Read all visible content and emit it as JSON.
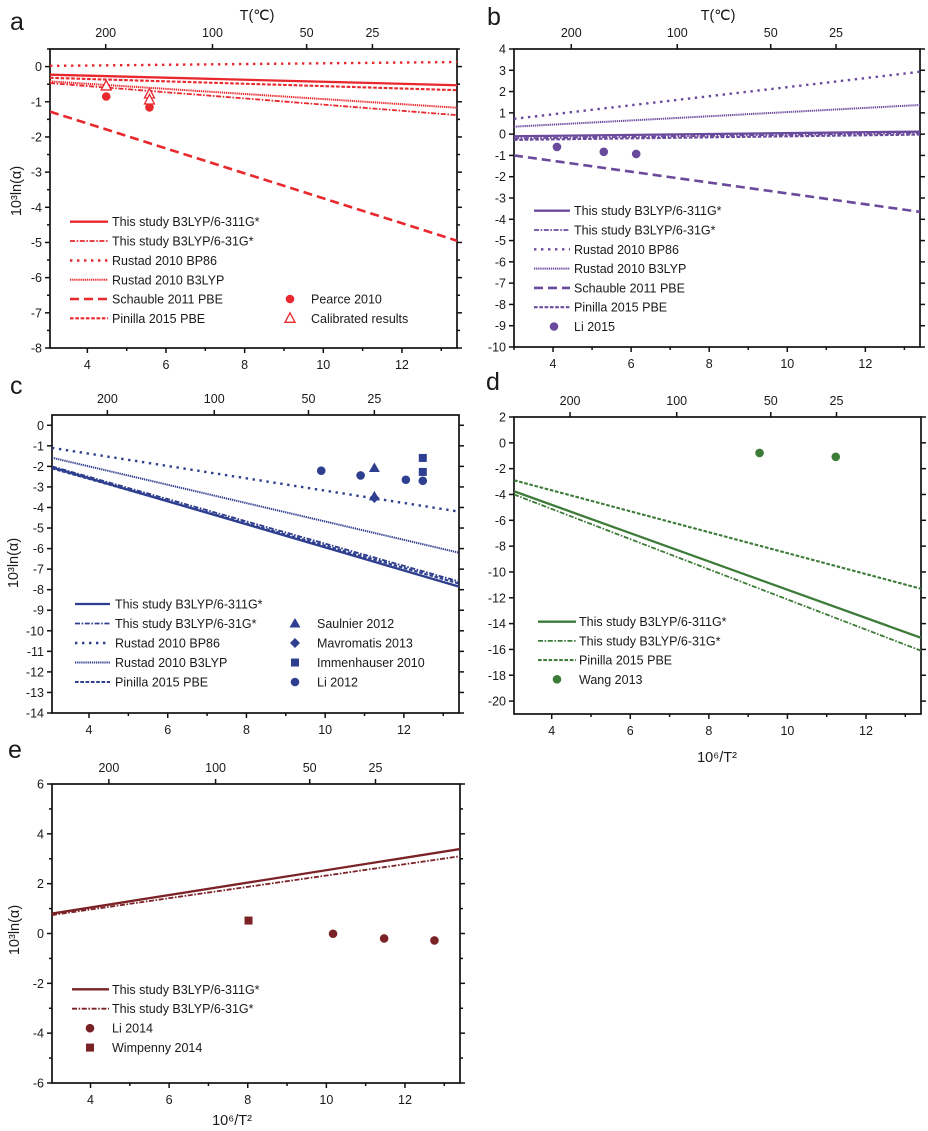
{
  "chart_data": [
    {
      "panel": "a",
      "type": "line",
      "title": "",
      "xlabel": "",
      "ylabel": "10³ln(α)",
      "top_axis_label": "T(℃)",
      "xlim": [
        3.05,
        13.4
      ],
      "ylim": [
        -8,
        0.5
      ],
      "xticks": [
        4,
        6,
        8,
        10,
        12
      ],
      "yticks": [
        0,
        -1,
        -2,
        -3,
        -4,
        -5,
        -6,
        -7,
        -8
      ],
      "top_ticks_celsius": [
        200,
        100,
        50,
        25
      ],
      "grid": false,
      "legend_placement": "bottom-left",
      "color": "#e8282d",
      "series": [
        {
          "name": "This study B3LYP/6-311G*",
          "style": "solid",
          "x": [
            3.05,
            13.4
          ],
          "y": [
            -0.23,
            -0.53
          ]
        },
        {
          "name": "This study B3LYP/6-31G*",
          "style": "dash-dot",
          "x": [
            3.05,
            13.4
          ],
          "y": [
            -0.47,
            -1.38
          ]
        },
        {
          "name": "Rustad 2010 BP86",
          "style": "dotted",
          "x": [
            3.05,
            13.4
          ],
          "y": [
            0.02,
            0.13
          ]
        },
        {
          "name": "Rustad 2010 B3LYP",
          "style": "fine-dotted",
          "x": [
            3.05,
            13.4
          ],
          "y": [
            -0.42,
            -1.17
          ]
        },
        {
          "name": "Schauble 2011 PBE",
          "style": "dashed",
          "x": [
            3.05,
            13.4
          ],
          "y": [
            -1.28,
            -4.95
          ]
        },
        {
          "name": "Pinilla 2015 PBE",
          "style": "short-dashed",
          "x": [
            3.05,
            13.4
          ],
          "y": [
            -0.32,
            -0.67
          ]
        }
      ],
      "points": [
        {
          "name": "Pearce 2010",
          "marker": "circle",
          "x": [
            4.48,
            5.58
          ],
          "y": [
            -0.85,
            -1.16
          ]
        },
        {
          "name": "Calibrated results",
          "marker": "triangle-open",
          "x": [
            4.48,
            5.58,
            5.58
          ],
          "y": [
            -0.55,
            -0.78,
            -0.95
          ]
        }
      ]
    },
    {
      "panel": "b",
      "type": "line",
      "title": "",
      "xlabel": "",
      "ylabel": "",
      "top_axis_label": "T(℃)",
      "xlim": [
        3.0,
        13.4
      ],
      "ylim": [
        -10,
        4
      ],
      "xticks": [
        4,
        6,
        8,
        10,
        12
      ],
      "yticks": [
        4,
        3,
        2,
        1,
        0,
        -1,
        -2,
        -3,
        -4,
        -5,
        -6,
        -7,
        -8,
        -9,
        -10
      ],
      "top_ticks_celsius": [
        200,
        100,
        50,
        25
      ],
      "grid": false,
      "legend_placement": "bottom-left",
      "color": "#6a4a9c",
      "series": [
        {
          "name": "This study B3LYP/6-311G*",
          "style": "solid",
          "x": [
            3.0,
            13.4
          ],
          "y": [
            -0.1,
            0.12
          ]
        },
        {
          "name": "This study B3LYP/6-31G*",
          "style": "dash-dot",
          "x": [
            3.0,
            13.4
          ],
          "y": [
            -0.2,
            0.05
          ]
        },
        {
          "name": "Rustad 2010 BP86",
          "style": "dotted",
          "x": [
            3.0,
            13.4
          ],
          "y": [
            0.72,
            2.93
          ]
        },
        {
          "name": "Rustad 2010 B3LYP",
          "style": "fine-dotted",
          "x": [
            3.0,
            13.4
          ],
          "y": [
            0.35,
            1.37
          ]
        },
        {
          "name": "Schauble 2011 PBE",
          "style": "dashed",
          "x": [
            3.0,
            13.4
          ],
          "y": [
            -1.0,
            -3.65
          ]
        },
        {
          "name": "Pinilla 2015 PBE",
          "style": "short-dashed",
          "x": [
            3.0,
            13.4
          ],
          "y": [
            -0.27,
            -0.02
          ]
        }
      ],
      "points": [
        {
          "name": "Li 2015",
          "marker": "circle",
          "x": [
            4.1,
            5.3,
            6.13
          ],
          "y": [
            -0.6,
            -0.83,
            -0.93
          ]
        }
      ]
    },
    {
      "panel": "c",
      "type": "line",
      "title": "",
      "xlabel": "",
      "ylabel": "10³ln(α)",
      "top_axis_label": "",
      "xlim": [
        3.06,
        13.4
      ],
      "ylim": [
        -14,
        0.5
      ],
      "xticks": [
        4,
        6,
        8,
        10,
        12
      ],
      "yticks": [
        0,
        -1,
        -2,
        -3,
        -4,
        -5,
        -6,
        -7,
        -8,
        -9,
        -10,
        -11,
        -12,
        -13,
        -14
      ],
      "top_ticks_celsius": [
        200,
        100,
        50,
        25
      ],
      "grid": false,
      "legend_placement": "bottom-left",
      "color": "#2f3f8f",
      "series": [
        {
          "name": "This study B3LYP/6-311G*",
          "style": "solid",
          "x": [
            3.06,
            13.4
          ],
          "y": [
            -2.05,
            -7.85
          ]
        },
        {
          "name": "This study B3LYP/6-31G*",
          "style": "dash-dot",
          "x": [
            3.06,
            13.4
          ],
          "y": [
            -2.0,
            -7.6
          ]
        },
        {
          "name": "Rustad 2010 BP86",
          "style": "dotted",
          "x": [
            3.06,
            13.4
          ],
          "y": [
            -1.1,
            -4.2
          ]
        },
        {
          "name": "Rustad 2010 B3LYP",
          "style": "fine-dotted",
          "x": [
            3.06,
            13.4
          ],
          "y": [
            -1.58,
            -6.2
          ]
        },
        {
          "name": "Pinilla 2015 PBE",
          "style": "short-dashed",
          "x": [
            3.06,
            13.4
          ],
          "y": [
            -2.1,
            -7.7
          ]
        }
      ],
      "points": [
        {
          "name": "Saulnier 2012",
          "marker": "triangle",
          "x": [
            11.25,
            11.25
          ],
          "y": [
            -2.08,
            -3.46
          ]
        },
        {
          "name": "Mavromatis 2013",
          "marker": "diamond",
          "x": [
            11.25
          ],
          "y": [
            -3.54
          ]
        },
        {
          "name": "Immenhauser 2010",
          "marker": "square",
          "x": [
            12.48,
            12.48
          ],
          "y": [
            -1.59,
            -2.27
          ]
        },
        {
          "name": "Li 2012",
          "marker": "circle",
          "x": [
            9.9,
            10.9,
            12.05,
            12.48
          ],
          "y": [
            -2.21,
            -2.44,
            -2.65,
            -2.7
          ]
        }
      ]
    },
    {
      "panel": "d",
      "type": "line",
      "title": "",
      "xlabel": "10⁶/T²",
      "ylabel": "",
      "top_axis_label": "",
      "xlim": [
        3.04,
        13.4
      ],
      "ylim": [
        -21,
        2
      ],
      "xticks": [
        4,
        6,
        8,
        10,
        12
      ],
      "yticks": [
        2,
        0,
        -2,
        -4,
        -6,
        -8,
        -10,
        -12,
        -14,
        -16,
        -18,
        -20
      ],
      "top_ticks_celsius": [
        200,
        100,
        50,
        25
      ],
      "grid": false,
      "legend_placement": "bottom-left",
      "color": "#3d7b38",
      "series": [
        {
          "name": "This study B3LYP/6-311G*",
          "style": "solid",
          "x": [
            3.04,
            13.4
          ],
          "y": [
            -3.75,
            -15.1
          ]
        },
        {
          "name": "This study B3LYP/6-31G*",
          "style": "dash-dot",
          "x": [
            3.04,
            13.4
          ],
          "y": [
            -4.0,
            -16.1
          ]
        },
        {
          "name": "Pinilla 2015 PBE",
          "style": "short-dashed",
          "x": [
            3.04,
            13.4
          ],
          "y": [
            -2.9,
            -11.3
          ]
        }
      ],
      "points": [
        {
          "name": "Wang 2013",
          "marker": "circle",
          "x": [
            9.29,
            11.23
          ],
          "y": [
            -0.78,
            -1.08
          ]
        }
      ]
    },
    {
      "panel": "e",
      "type": "line",
      "title": "",
      "xlabel": "10⁶/T²",
      "ylabel": "10³ln(α)",
      "top_axis_label": "",
      "xlim": [
        3.02,
        13.4
      ],
      "ylim": [
        -6,
        6
      ],
      "xticks": [
        4,
        6,
        8,
        10,
        12
      ],
      "yticks": [
        6,
        4,
        2,
        0,
        -2,
        -4,
        -6
      ],
      "top_ticks_celsius": [
        200,
        100,
        50,
        25
      ],
      "grid": false,
      "legend_placement": "bottom-left",
      "color": "#7a2226",
      "series": [
        {
          "name": "This study B3LYP/6-311G*",
          "style": "solid",
          "x": [
            3.02,
            13.4
          ],
          "y": [
            0.8,
            3.39
          ]
        },
        {
          "name": "This study B3LYP/6-31G*",
          "style": "dash-dot",
          "x": [
            3.02,
            13.4
          ],
          "y": [
            0.74,
            3.1
          ]
        }
      ],
      "points": [
        {
          "name": "Li 2014",
          "marker": "circle",
          "x": [
            10.17,
            11.47,
            12.75
          ],
          "y": [
            -0.01,
            -0.2,
            -0.28
          ]
        },
        {
          "name": "Wimpenny 2014",
          "marker": "square",
          "x": [
            8.02
          ],
          "y": [
            0.52
          ]
        }
      ]
    }
  ]
}
